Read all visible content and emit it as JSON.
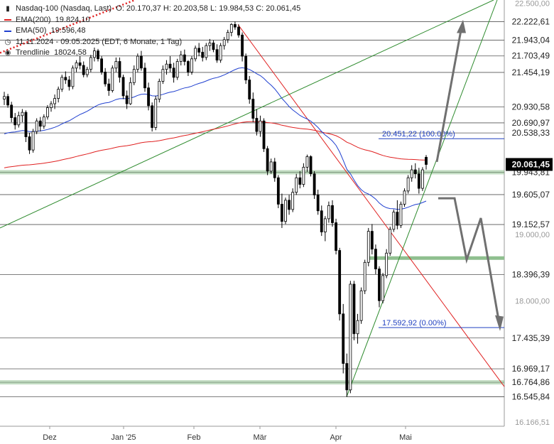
{
  "header": {
    "instrument": "Nasdaq-100 (Nasdaq, Last)",
    "ohlc": "O: 20.170,37   H: 20.203,58   L: 19.984,53   C: 20.061,45",
    "ema200_label": "EMA(200)",
    "ema200_value": "19.824,10",
    "ema50_label": "EMA(50)",
    "ema50_value": "19.596,48",
    "period": "11.11.2024 - 09.05.2025   (EDT, 6 Monate, 1 Tag)",
    "trendline_label": "Trendlinie",
    "trendline_value": "18024,58"
  },
  "colors": {
    "candle": "#000000",
    "ema200": "#e02020",
    "ema50": "#2040d0",
    "downtrend": "#e02020",
    "uptrend": "#2e8b2e",
    "support_band": "#8fbf8f",
    "fib": "#2040c0",
    "forecast_arrow": "#707070",
    "last_price_bg": "#000000"
  },
  "chart_data": {
    "type": "candlestick",
    "title": "Nasdaq-100 (Nasdaq, Last)",
    "ylim": [
      16100,
      22550
    ],
    "y_ticks": [
      "22.500,00",
      "19.000,00",
      "18.000,00",
      "16.166,51"
    ],
    "x_labels": [
      "Dez",
      "Jan '25",
      "Feb",
      "Mär",
      "Apr",
      "Mai"
    ],
    "last_price": "20.061,45",
    "price_levels": [
      {
        "value": 22222.61,
        "label": "22.222,61"
      },
      {
        "value": 21943.04,
        "label": "21.943,04"
      },
      {
        "value": 21703.49,
        "label": "21.703,49"
      },
      {
        "value": 21454.19,
        "label": "21.454,19"
      },
      {
        "value": 20930.58,
        "label": "20.930,58"
      },
      {
        "value": 20690.97,
        "label": "20.690,97"
      },
      {
        "value": 20538.33,
        "label": "20.538,33"
      },
      {
        "value": 19943.81,
        "label": "19.943,81"
      },
      {
        "value": 19605.07,
        "label": "19.605,07"
      },
      {
        "value": 19152.57,
        "label": "19.152,57"
      },
      {
        "value": 18396.39,
        "label": "18.396,39"
      },
      {
        "value": 17435.39,
        "label": "17.435,39"
      },
      {
        "value": 16969.17,
        "label": "16.969,17"
      },
      {
        "value": 16764.86,
        "label": "16.764,86"
      },
      {
        "value": 16545.84,
        "label": "16.545,84"
      }
    ],
    "fib_labels": [
      {
        "value": 20451.22,
        "label": "20.451,22 (100.00%)"
      },
      {
        "value": 17592.92,
        "label": "17.592,92 (0.00%)"
      }
    ],
    "candles": [
      [
        21050,
        21160,
        20960,
        21090
      ],
      [
        21090,
        21130,
        20920,
        20960
      ],
      [
        20960,
        21010,
        20700,
        20770
      ],
      [
        20770,
        20840,
        20590,
        20660
      ],
      [
        20660,
        20860,
        20620,
        20800
      ],
      [
        20800,
        20900,
        20700,
        20850
      ],
      [
        20850,
        20880,
        20400,
        20480
      ],
      [
        20480,
        20540,
        20220,
        20280
      ],
      [
        20280,
        20600,
        20240,
        20560
      ],
      [
        20560,
        20760,
        20520,
        20720
      ],
      [
        20720,
        20780,
        20560,
        20640
      ],
      [
        20640,
        20820,
        20600,
        20780
      ],
      [
        20780,
        20960,
        20740,
        20920
      ],
      [
        20920,
        21020,
        20860,
        20980
      ],
      [
        20980,
        21120,
        20900,
        21060
      ],
      [
        21060,
        21240,
        21000,
        21200
      ],
      [
        21200,
        21420,
        21160,
        21380
      ],
      [
        21380,
        21470,
        21280,
        21340
      ],
      [
        21340,
        21400,
        21180,
        21240
      ],
      [
        21240,
        21560,
        21200,
        21520
      ],
      [
        21520,
        21640,
        21460,
        21600
      ],
      [
        21600,
        21700,
        21500,
        21560
      ],
      [
        21560,
        21620,
        21380,
        21420
      ],
      [
        21420,
        21540,
        21380,
        21500
      ],
      [
        21500,
        21720,
        21460,
        21680
      ],
      [
        21680,
        21830,
        21620,
        21780
      ],
      [
        21780,
        21810,
        21620,
        21660
      ],
      [
        21660,
        21700,
        21420,
        21460
      ],
      [
        21460,
        21520,
        21240,
        21280
      ],
      [
        21280,
        21360,
        21100,
        21180
      ],
      [
        21180,
        21560,
        21150,
        21520
      ],
      [
        21520,
        21680,
        21460,
        21620
      ],
      [
        21620,
        21680,
        21300,
        21380
      ],
      [
        21380,
        21420,
        21050,
        21100
      ],
      [
        21100,
        21180,
        20900,
        20980
      ],
      [
        20980,
        21380,
        20960,
        21300
      ],
      [
        21300,
        21560,
        21260,
        21500
      ],
      [
        21500,
        21740,
        21460,
        21700
      ],
      [
        21700,
        21780,
        21480,
        21520
      ],
      [
        21520,
        21600,
        21160,
        21220
      ],
      [
        21220,
        21300,
        20880,
        20950
      ],
      [
        20950,
        21000,
        20560,
        20620
      ],
      [
        20620,
        21100,
        20580,
        21050
      ],
      [
        21050,
        21360,
        21000,
        21320
      ],
      [
        21320,
        21560,
        21280,
        21500
      ],
      [
        21500,
        21640,
        21420,
        21580
      ],
      [
        21580,
        21700,
        21460,
        21520
      ],
      [
        21520,
        21600,
        21300,
        21380
      ],
      [
        21380,
        21660,
        21340,
        21620
      ],
      [
        21620,
        21780,
        21560,
        21720
      ],
      [
        21720,
        21800,
        21560,
        21620
      ],
      [
        21620,
        21640,
        21400,
        21460
      ],
      [
        21460,
        21700,
        21420,
        21660
      ],
      [
        21660,
        21860,
        21620,
        21820
      ],
      [
        21820,
        21900,
        21700,
        21760
      ],
      [
        21760,
        21840,
        21620,
        21680
      ],
      [
        21680,
        21900,
        21640,
        21860
      ],
      [
        21860,
        21960,
        21780,
        21900
      ],
      [
        21900,
        21940,
        21760,
        21800
      ],
      [
        21800,
        21880,
        21600,
        21640
      ],
      [
        21640,
        21900,
        21600,
        21860
      ],
      [
        21860,
        21990,
        21800,
        21950
      ],
      [
        21950,
        22100,
        21900,
        22060
      ],
      [
        22060,
        22200,
        22000,
        22180
      ],
      [
        22180,
        22222,
        22100,
        22140
      ],
      [
        22140,
        22180,
        21980,
        22020
      ],
      [
        22020,
        22060,
        21620,
        21700
      ],
      [
        21700,
        21740,
        21280,
        21340
      ],
      [
        21340,
        21400,
        20980,
        21050
      ],
      [
        21050,
        21150,
        20700,
        20760
      ],
      [
        20760,
        20900,
        20500,
        20560
      ],
      [
        20560,
        20800,
        20480,
        20720
      ],
      [
        20720,
        20760,
        20250,
        20300
      ],
      [
        20300,
        20340,
        19900,
        19960
      ],
      [
        19960,
        20150,
        19920,
        20100
      ],
      [
        20100,
        20160,
        19800,
        19860
      ],
      [
        19860,
        19900,
        19400,
        19460
      ],
      [
        19460,
        19620,
        19100,
        19200
      ],
      [
        19200,
        19560,
        19160,
        19520
      ],
      [
        19520,
        19600,
        19300,
        19380
      ],
      [
        19380,
        19700,
        19340,
        19640
      ],
      [
        19640,
        19920,
        19600,
        19860
      ],
      [
        19860,
        19960,
        19700,
        19760
      ],
      [
        19760,
        20080,
        19720,
        20020
      ],
      [
        20020,
        20210,
        19950,
        20180
      ],
      [
        20180,
        20200,
        19880,
        19920
      ],
      [
        19920,
        19960,
        19540,
        19600
      ],
      [
        19600,
        19680,
        19300,
        19360
      ],
      [
        19360,
        19440,
        18980,
        19040
      ],
      [
        19040,
        19280,
        18900,
        19240
      ],
      [
        19240,
        19500,
        19180,
        19440
      ],
      [
        19440,
        19520,
        19120,
        19180
      ],
      [
        19180,
        19240,
        18700,
        18760
      ],
      [
        18760,
        18800,
        17700,
        17800
      ],
      [
        17800,
        17950,
        16900,
        17050
      ],
      [
        17050,
        17200,
        16545,
        16650
      ],
      [
        16650,
        18300,
        16600,
        18250
      ],
      [
        18250,
        18300,
        17400,
        17500
      ],
      [
        17500,
        17800,
        17350,
        17700
      ],
      [
        17700,
        18200,
        17650,
        18150
      ],
      [
        18150,
        18620,
        18100,
        18580
      ],
      [
        18580,
        19100,
        18520,
        19050
      ],
      [
        19050,
        19160,
        18700,
        18780
      ],
      [
        18780,
        18850,
        18400,
        18480
      ],
      [
        18480,
        18520,
        17900,
        18000
      ],
      [
        18000,
        18420,
        17960,
        18380
      ],
      [
        18380,
        18780,
        18340,
        18720
      ],
      [
        18720,
        19120,
        18680,
        19080
      ],
      [
        19080,
        19380,
        19040,
        19340
      ],
      [
        19340,
        19520,
        19080,
        19140
      ],
      [
        19140,
        19500,
        19100,
        19460
      ],
      [
        19460,
        19700,
        19420,
        19660
      ],
      [
        19660,
        19900,
        19620,
        19860
      ],
      [
        19860,
        20050,
        19800,
        19980
      ],
      [
        19980,
        20080,
        19850,
        19920
      ],
      [
        19920,
        20010,
        19620,
        19700
      ],
      [
        19700,
        20020,
        19660,
        19980
      ],
      [
        20170.37,
        20203.58,
        19984.53,
        20061.45
      ]
    ]
  }
}
